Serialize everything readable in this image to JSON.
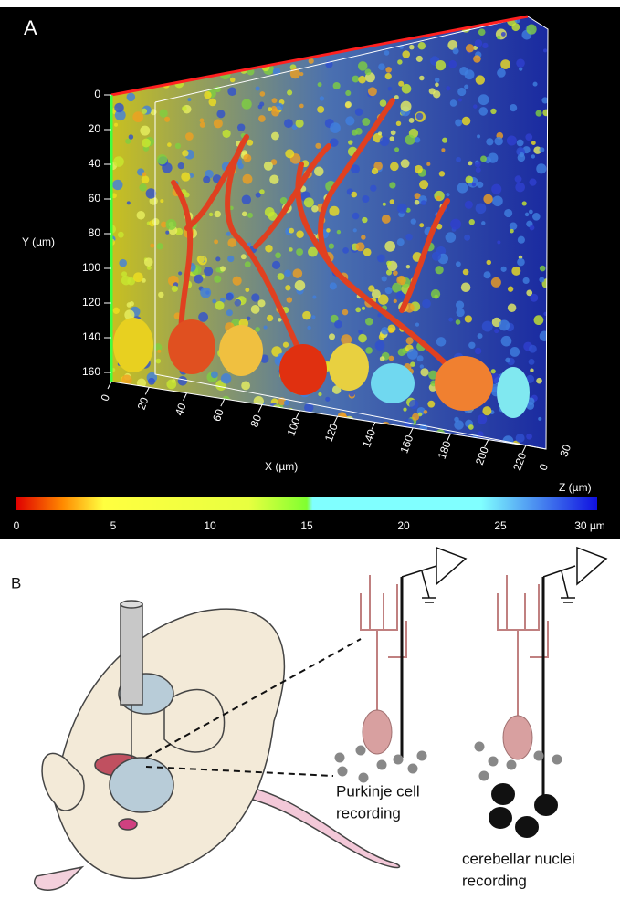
{
  "panel_a": {
    "label": "A",
    "y_axis": {
      "label": "Y (µm)",
      "ticks": [
        0,
        20,
        40,
        60,
        80,
        100,
        120,
        140,
        160
      ]
    },
    "x_axis": {
      "label": "X (µm)",
      "ticks": [
        0,
        20,
        40,
        60,
        80,
        100,
        120,
        140,
        160,
        180,
        200,
        220
      ]
    },
    "z_axis": {
      "label": "Z (µm)",
      "ticks": [
        0,
        30
      ]
    },
    "colorbar": {
      "ticks": [
        "0",
        "5",
        "10",
        "15",
        "20",
        "25",
        "30 µm"
      ]
    }
  },
  "panel_b": {
    "label": "B",
    "purkinje": [
      "Purkinje cell",
      "recording"
    ],
    "nuclei": [
      "cerebellar nuclei",
      "recording"
    ]
  }
}
